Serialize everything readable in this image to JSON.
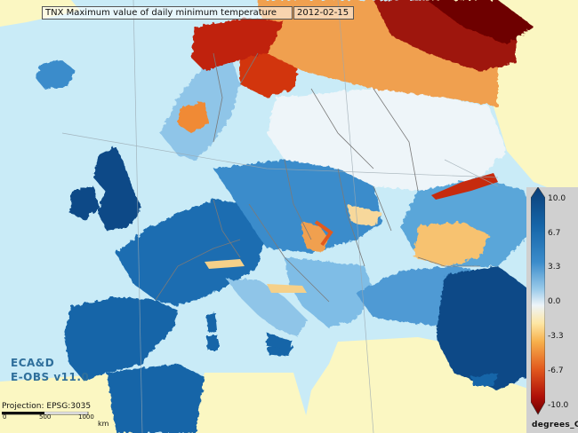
{
  "title": "TNX Maximum value of daily minimum temperature",
  "date": "2012-02-15",
  "watermark": {
    "line1": "ECA&D",
    "line2": "E-OBS v11.0"
  },
  "projection": "Projection: EPSG:3035",
  "scale": {
    "labels": [
      "0",
      "500",
      "1000"
    ],
    "unit": "km"
  },
  "legend": {
    "ticks": [
      "10.0",
      "6.7",
      "3.3",
      "0.0",
      "-3.3",
      "-6.7",
      "-10.0"
    ],
    "unit": "degrees_C",
    "colors": [
      "#0b3f78",
      "#1565a8",
      "#3b8ccb",
      "#9bcbea",
      "#eef5f9",
      "#fde6a3",
      "#f7b04c",
      "#e25a1e",
      "#b01008",
      "#6e0000"
    ]
  },
  "colors": {
    "sea": "#c9ebf7",
    "land_outside": "#fbf7c2",
    "border": "#7a7a7a"
  }
}
